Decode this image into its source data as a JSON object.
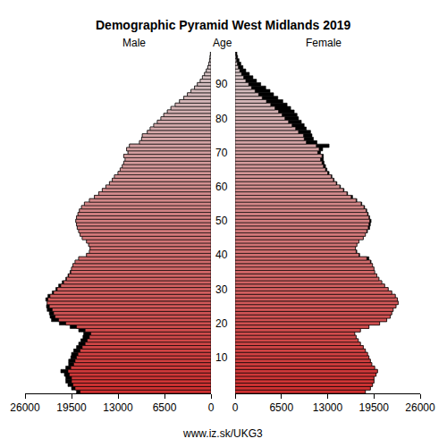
{
  "chart_data": {
    "type": "pyramid",
    "orientation": "horizontal",
    "title": "Demographic Pyramid West Midlands 2019",
    "ylabel": "Age",
    "source": "www.iz.sk/UKG3",
    "categories": [
      0,
      1,
      2,
      3,
      4,
      5,
      6,
      7,
      8,
      9,
      10,
      11,
      12,
      13,
      14,
      15,
      16,
      17,
      18,
      19,
      20,
      21,
      22,
      23,
      24,
      25,
      26,
      27,
      28,
      29,
      30,
      31,
      32,
      33,
      34,
      35,
      36,
      37,
      38,
      39,
      40,
      41,
      42,
      43,
      44,
      45,
      46,
      47,
      48,
      49,
      50,
      51,
      52,
      53,
      54,
      55,
      56,
      57,
      58,
      59,
      60,
      61,
      62,
      63,
      64,
      65,
      66,
      67,
      68,
      69,
      70,
      71,
      72,
      73,
      74,
      75,
      76,
      77,
      78,
      79,
      80,
      81,
      82,
      83,
      84,
      85,
      86,
      87,
      88,
      89,
      90,
      91,
      92,
      93,
      94,
      95,
      96,
      97,
      98,
      99
    ],
    "series": [
      {
        "name": "Male",
        "values": [
          18800,
          19500,
          20000,
          20300,
          20300,
          20500,
          21000,
          20300,
          19900,
          19900,
          19600,
          19500,
          19200,
          18800,
          18500,
          18200,
          17900,
          17800,
          18500,
          19700,
          21200,
          22300,
          22500,
          22600,
          22900,
          23000,
          22900,
          23100,
          22800,
          22200,
          21700,
          21300,
          20800,
          20300,
          20000,
          19700,
          19500,
          19300,
          19000,
          18500,
          17400,
          17000,
          16900,
          17100,
          17400,
          18000,
          18300,
          18500,
          18700,
          18800,
          18900,
          18800,
          18600,
          18400,
          18100,
          17700,
          17000,
          16300,
          15700,
          15200,
          14700,
          14200,
          13800,
          13500,
          13000,
          12700,
          12400,
          12200,
          12000,
          12200,
          11600,
          11800,
          11400,
          10000,
          9700,
          9600,
          8900,
          8500,
          8000,
          7500,
          7000,
          6600,
          6100,
          5600,
          5000,
          4400,
          3800,
          3300,
          2800,
          2300,
          1900,
          1500,
          1200,
          900,
          650,
          450,
          300,
          200,
          130,
          80
        ]
      },
      {
        "name": "Female",
        "values": [
          18300,
          19000,
          19300,
          19500,
          19500,
          19800,
          20000,
          19600,
          19200,
          19000,
          18800,
          18600,
          18300,
          18000,
          17600,
          17300,
          17000,
          16800,
          17600,
          18800,
          20300,
          21300,
          21800,
          22000,
          22200,
          22600,
          22900,
          22800,
          22500,
          22000,
          21500,
          21000,
          20600,
          20200,
          19900,
          19600,
          19500,
          19300,
          19100,
          18800,
          17500,
          17100,
          16900,
          17100,
          17400,
          18000,
          18300,
          18600,
          18900,
          19000,
          19100,
          18900,
          18700,
          18500,
          18200,
          17800,
          17100,
          16500,
          15800,
          15300,
          14800,
          14300,
          13900,
          13600,
          13200,
          12900,
          12700,
          12500,
          12400,
          12400,
          12000,
          12300,
          13200,
          11500,
          11000,
          10800,
          10600,
          10000,
          9700,
          9300,
          8900,
          8700,
          8300,
          7800,
          7300,
          6700,
          6000,
          5400,
          4900,
          4300,
          3600,
          3000,
          2500,
          2000,
          1500,
          1100,
          800,
          550,
          350,
          250
        ]
      }
    ],
    "xlim": [
      0,
      26000
    ],
    "xticks": [
      0,
      6500,
      13000,
      19500,
      26000
    ],
    "ylim": [
      -0.5,
      99.5
    ],
    "yticks": [
      10,
      20,
      30,
      40,
      50,
      60,
      70,
      80,
      90
    ]
  }
}
